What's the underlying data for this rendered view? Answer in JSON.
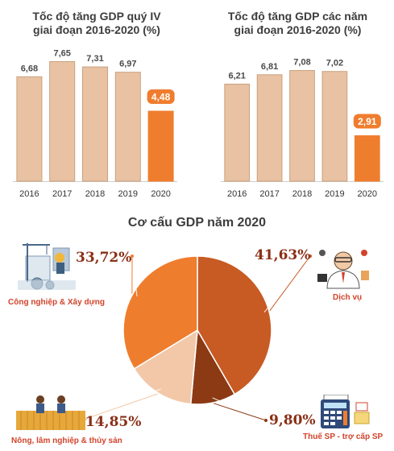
{
  "colors": {
    "bar": "#e9c2a3",
    "bar_stroke": "#c9a07d",
    "highlight": "#ef7d2e",
    "pie_industry": "#ef7d2e",
    "pie_services": "#c85a24",
    "pie_tax": "#8b3a14",
    "pie_agri": "#f2c8a8",
    "label_text": "#d1432b",
    "pct_text": "#8a2f16"
  },
  "charts": {
    "quarter": {
      "title_line1": "Tốc độ tăng GDP quý IV",
      "title_line2": "giai đoạn 2016-2020 (%)"
    },
    "annual": {
      "title_line1": "Tốc độ tăng GDP các năm",
      "title_line2": "giai đoạn 2016-2020 (%)"
    },
    "pie": {
      "title": "Cơ cấu GDP năm 2020"
    }
  },
  "pie_labels": {
    "industry": {
      "name": "Công nghiệp & Xây dựng",
      "pct": "33,72%"
    },
    "services": {
      "name": "Dịch vụ",
      "pct": "41,63%"
    },
    "agri": {
      "name": "Nông, lâm nghiệp & thủy sản",
      "pct": "14,85%"
    },
    "tax": {
      "name": "Thuế SP - trợ cấp SP",
      "pct": "9,80%"
    }
  },
  "chart_data": [
    {
      "type": "bar",
      "title": "Tốc độ tăng GDP quý IV giai đoạn 2016-2020 (%)",
      "categories": [
        "2016",
        "2017",
        "2018",
        "2019",
        "2020"
      ],
      "values": [
        6.68,
        7.65,
        7.31,
        6.97,
        4.48
      ],
      "value_labels": [
        "6,68",
        "7,65",
        "7,31",
        "6,97",
        "4,48"
      ],
      "highlight_index": 4,
      "ylim": [
        0,
        8.5
      ],
      "grid": false
    },
    {
      "type": "bar",
      "title": "Tốc độ tăng GDP các năm giai đoạn 2016-2020 (%)",
      "categories": [
        "2016",
        "2017",
        "2018",
        "2019",
        "2020"
      ],
      "values": [
        6.21,
        6.81,
        7.08,
        7.02,
        2.91
      ],
      "value_labels": [
        "6,21",
        "6,81",
        "7,08",
        "7,02",
        "2,91"
      ],
      "highlight_index": 4,
      "ylim": [
        0,
        8.5
      ],
      "grid": false
    },
    {
      "type": "pie",
      "title": "Cơ cấu GDP năm 2020",
      "labels": [
        "Dịch vụ",
        "Thuế SP - trợ cấp SP",
        "Nông, lâm nghiệp & thủy sản",
        "Công nghiệp & Xây dựng"
      ],
      "values": [
        41.63,
        9.8,
        14.85,
        33.72
      ],
      "value_labels": [
        "41,63%",
        "9,80%",
        "14,85%",
        "33,72%"
      ]
    }
  ]
}
